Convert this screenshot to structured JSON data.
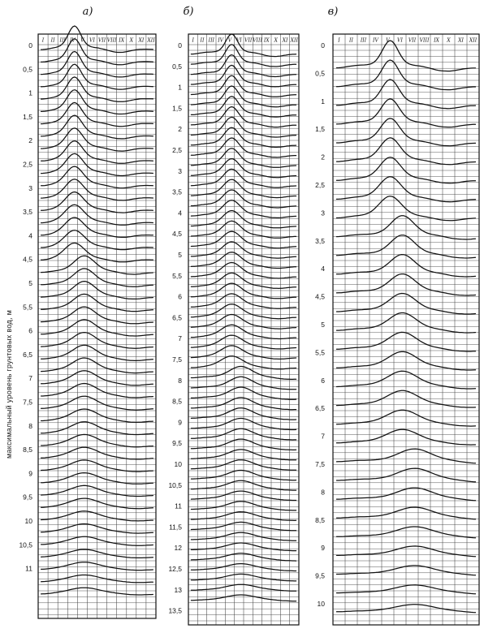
{
  "y_axis_title": "максимальный уровень грунтовых вод, м",
  "panels": [
    {
      "id": "a",
      "label": "а)",
      "months": [
        "I",
        "II",
        "III",
        "IV",
        "V",
        "VI",
        "VII",
        "VIII",
        "IX",
        "X",
        "XI",
        "XII"
      ],
      "y_ticks": [
        "0",
        "0,5",
        "1",
        "1,5",
        "2",
        "2,5",
        "3",
        "3,5",
        "4",
        "4,5",
        "5",
        "5,5",
        "6",
        "6,5",
        "7",
        "7,5",
        "8",
        "8,5",
        "9",
        "9,5",
        "10",
        "10,5",
        "11"
      ],
      "curve_peak_months": [
        4,
        4,
        4,
        4,
        4,
        4,
        4,
        4,
        4,
        4,
        4,
        4,
        4,
        4,
        4,
        4,
        4,
        4,
        5,
        5,
        5,
        5,
        5,
        5,
        5,
        5,
        5,
        5,
        5,
        5,
        5,
        5,
        5,
        5,
        5,
        5,
        5,
        5,
        5,
        5,
        5,
        5,
        5,
        5,
        5
      ]
    },
    {
      "id": "b",
      "label": "б)",
      "months": [
        "I",
        "II",
        "III",
        "IV",
        "V",
        "VI",
        "VII",
        "VIII",
        "IX",
        "X",
        "XI",
        "XII"
      ],
      "y_ticks": [
        "0",
        "0,5",
        "1",
        "1,5",
        "2",
        "2,5",
        "3",
        "3,5",
        "4",
        "4,5",
        "5",
        "5,5",
        "6",
        "6,5",
        "7",
        "7,5",
        "8",
        "8,5",
        "9",
        "9,5",
        "10",
        "10,5",
        "11",
        "11,5",
        "12",
        "12,5",
        "13",
        "13,5"
      ],
      "curve_peak_months": [
        5,
        5,
        5,
        5,
        5,
        5,
        5,
        5,
        5,
        5,
        5,
        5,
        5,
        5,
        5,
        5,
        5,
        5,
        5,
        5,
        5,
        5,
        5,
        5,
        5,
        5,
        5,
        5,
        5,
        5,
        5,
        5,
        6,
        6,
        6,
        6,
        6,
        6,
        6,
        6,
        6,
        6,
        6,
        6,
        6,
        6,
        6,
        6,
        6,
        6,
        6,
        6,
        6,
        6,
        6
      ]
    },
    {
      "id": "c",
      "label": "в)",
      "months": [
        "I",
        "II",
        "III",
        "IV",
        "V",
        "VI",
        "VII",
        "VIII",
        "IX",
        "X",
        "XI",
        "XII"
      ],
      "y_ticks": [
        "0",
        "0,5",
        "1",
        "1,5",
        "2",
        "2,5",
        "3",
        "3,5",
        "4",
        "4,5",
        "5",
        "5,5",
        "6",
        "6,5",
        "7",
        "7,5",
        "8",
        "8,5",
        "9",
        "9,5",
        "10"
      ],
      "curve_peak_months": [
        5,
        5,
        5,
        5,
        5,
        5,
        5,
        5,
        5,
        6,
        6,
        6,
        6,
        6,
        6,
        6,
        6,
        6,
        6,
        6,
        6,
        7,
        7,
        7,
        7,
        7,
        7,
        7,
        7,
        7
      ]
    }
  ]
}
